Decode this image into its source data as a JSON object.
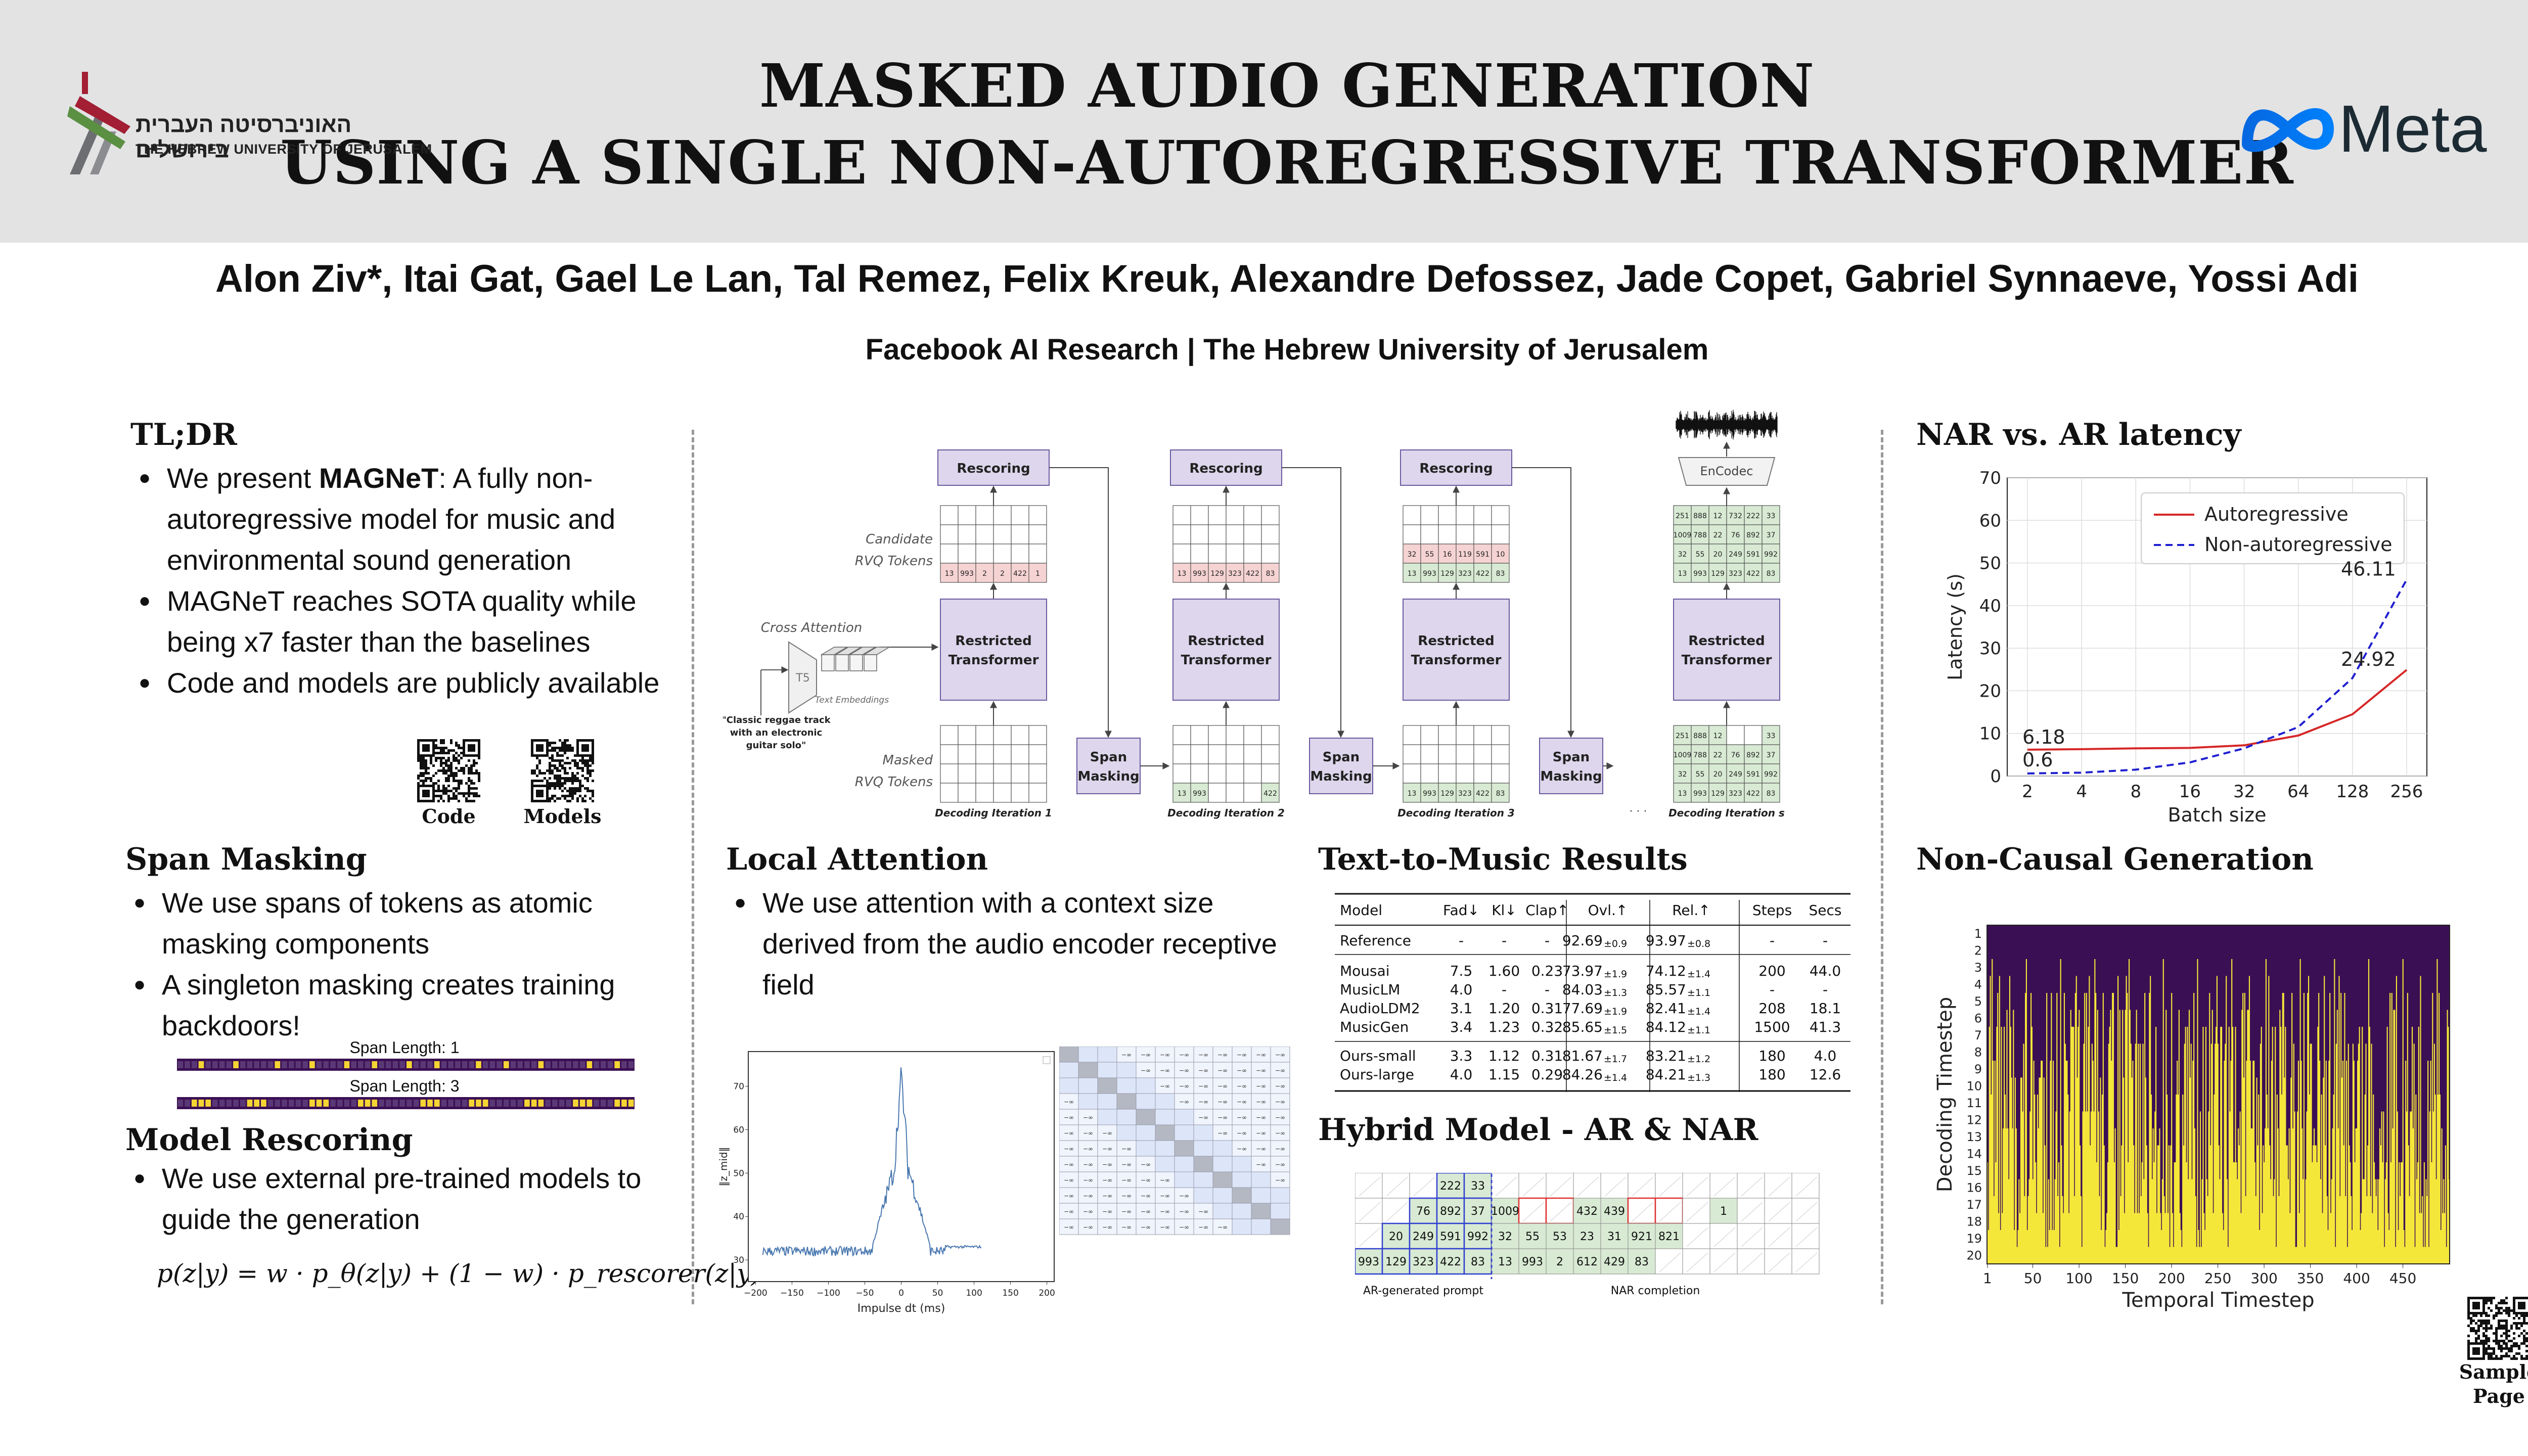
{
  "header": {
    "title_line1": "MASKED AUDIO GENERATION",
    "title_line2": "USING A SINGLE NON-AUTOREGRESSIVE TRANSFORMER",
    "huji_hebrew": "האוניברסיטה העברית בירושלים",
    "huji_english": "THE HEBREW UNIVERSITY OF JERUSALEM",
    "meta_logo": "Meta",
    "colors": {
      "background": "#e3e3e4",
      "meta_blue": "#1877f2"
    }
  },
  "authors": "Alon Ziv*, Itai Gat, Gael Le Lan, Tal Remez, Felix Kreuk, Alexandre Defossez, Jade Copet, Gabriel Synnaeve, Yossi Adi",
  "affiliation": "Facebook AI Research | The Hebrew University of Jerusalem",
  "tldr": {
    "heading": "TL;DR",
    "b1_pre": "We present ",
    "b1_bold": "MAGNeT",
    "b1_post": ": A fully non-autoregressive model for music and environmental sound generation",
    "b2": "MAGNeT reaches SOTA quality while being x7 faster than the baselines",
    "b3": "Code and models are publicly available",
    "qr_code": "Code",
    "qr_models": "Models"
  },
  "span_masking": {
    "heading": "Span Masking",
    "b1": "We use spans of tokens as atomic masking components",
    "b2": "A singleton masking creates training backdoors!",
    "label1": "Span Length: 1",
    "label3": "Span Length: 3",
    "mask1": [
      0,
      0,
      0,
      1,
      0,
      0,
      0,
      0,
      1,
      0,
      0,
      0,
      0,
      0,
      1,
      0,
      0,
      0,
      0,
      1,
      0,
      0,
      0,
      0,
      1,
      0,
      0,
      0,
      1,
      0,
      0,
      0,
      0,
      1,
      0,
      0,
      0,
      1,
      0,
      0,
      0,
      0,
      0,
      1,
      0,
      0,
      0,
      1,
      0,
      0,
      0,
      0,
      1,
      0,
      0,
      0,
      0,
      0,
      0,
      1,
      0,
      0,
      0,
      1,
      0,
      0
    ],
    "mask3": [
      0,
      0,
      1,
      1,
      1,
      0,
      0,
      0,
      0,
      0,
      1,
      1,
      1,
      0,
      0,
      0,
      0,
      0,
      0,
      1,
      1,
      1,
      0,
      0,
      0,
      0,
      1,
      1,
      1,
      0,
      0,
      0,
      0,
      0,
      0,
      1,
      1,
      1,
      0,
      0,
      0,
      0,
      1,
      1,
      1,
      0,
      0,
      0,
      0,
      0,
      1,
      1,
      1,
      0,
      0,
      0,
      0,
      1,
      1,
      1,
      0,
      0,
      0,
      1,
      1,
      1
    ],
    "colors": {
      "off": "#3b0f54",
      "on": "#f5d533"
    }
  },
  "model_rescoring": {
    "heading": "Model Rescoring",
    "b1": "We use external pre-trained models to guide the generation",
    "formula": "p(z|y) = w · p_θ(z|y) + (1 − w) · p_rescorer(z|y)"
  },
  "architecture": {
    "rescoring": "Rescoring",
    "restricted": "Restricted",
    "transformer": "Transformer",
    "span": "Span",
    "masking": "Masking",
    "encodec": "EnCodec",
    "t5": "T5",
    "candidate1": "Candidate",
    "candidate2": "RVQ Tokens",
    "masked1": "Masked",
    "masked2": "RVQ Tokens",
    "cross_attention": "Cross Attention",
    "text_embeddings": "Text Embeddings",
    "prompt1": "\"Classic reggae track",
    "prompt2": "with an electronic",
    "prompt3": "guitar solo\"",
    "dots": "· · ·",
    "iter_labels": [
      "Decoding Iteration 1",
      "Decoding Iteration 2",
      "Decoding Iteration 3",
      "Decoding Iteration s"
    ],
    "cand1": [
      "13",
      "993",
      "2",
      "2",
      "422",
      "1"
    ],
    "cand2": [
      "13",
      "993",
      "129",
      "323",
      "422",
      "83"
    ],
    "cand3a": [
      "32",
      "55",
      "16",
      "119",
      "591",
      "10"
    ],
    "cand3b": [
      "13",
      "993",
      "129",
      "323",
      "422",
      "83"
    ],
    "in2": [
      "13",
      "993",
      "",
      "",
      "",
      "422"
    ],
    "in3": [
      "13",
      "993",
      "129",
      "323",
      "422",
      "83"
    ],
    "final_rows": [
      [
        "251",
        "888",
        "12",
        "732",
        "222",
        "33"
      ],
      [
        "1009",
        "788",
        "22",
        "76",
        "892",
        "37"
      ],
      [
        "32",
        "55",
        "20",
        "249",
        "591",
        "992"
      ],
      [
        "13",
        "993",
        "129",
        "323",
        "422",
        "83"
      ]
    ],
    "in_s_rows": [
      [
        "251",
        "888",
        "12",
        "",
        "",
        "33"
      ],
      [
        "1009",
        "788",
        "22",
        "76",
        "892",
        "37"
      ],
      [
        "32",
        "55",
        "20",
        "249",
        "591",
        "992"
      ],
      [
        "13",
        "993",
        "129",
        "323",
        "422",
        "83"
      ]
    ]
  },
  "local_attention": {
    "heading": "Local Attention",
    "b1": "We use attention with a context size derived from the audio encoder receptive field",
    "plot_xlabel": "Impulse dt (ms)",
    "plot_ylabel": "‖z_mid‖",
    "plot_xticks": [
      "−200",
      "−150",
      "−100",
      "−50",
      "0",
      "50",
      "100",
      "150",
      "200"
    ],
    "plot_yticks": [
      "30",
      "40",
      "50",
      "60",
      "70"
    ],
    "inf": "−∞"
  },
  "t2m": {
    "heading": "Text-to-Music Results",
    "headers": [
      "Model",
      "Fad↓",
      "Kl↓",
      "Clap↑",
      "Ovl.↑",
      "Rel.↑",
      "Steps",
      "Secs"
    ],
    "reference": {
      "model": "Reference",
      "fad": "-",
      "kl": "-",
      "clap": "-",
      "ovl": "92.69",
      "ovl_pm": "±0.9",
      "rel": "93.97",
      "rel_pm": "±0.8",
      "steps": "-",
      "secs": "-"
    },
    "baselines": [
      {
        "model": "Mousai",
        "fad": "7.5",
        "kl": "1.60",
        "clap": "0.23",
        "ovl": "73.97",
        "ovl_pm": "±1.9",
        "rel": "74.12",
        "rel_pm": "±1.4",
        "steps": "200",
        "secs": "44.0"
      },
      {
        "model": "MusicLM",
        "fad": "4.0",
        "kl": "-",
        "clap": "-",
        "ovl": "84.03",
        "ovl_pm": "±1.3",
        "rel": "85.57",
        "rel_pm": "±1.1",
        "steps": "-",
        "secs": "-"
      },
      {
        "model": "AudioLDM2",
        "fad": "3.1",
        "kl": "1.20",
        "clap": "0.31",
        "ovl": "77.69",
        "ovl_pm": "±1.9",
        "rel": "82.41",
        "rel_pm": "±1.4",
        "steps": "208",
        "secs": "18.1"
      },
      {
        "model": "MusicGen",
        "fad": "3.4",
        "kl": "1.23",
        "clap": "0.32",
        "ovl": "85.65",
        "ovl_pm": "±1.5",
        "rel": "84.12",
        "rel_pm": "±1.1",
        "steps": "1500",
        "secs": "41.3"
      }
    ],
    "ours": [
      {
        "model": "Ours-small",
        "fad": "3.3",
        "kl": "1.12",
        "clap": "0.31",
        "ovl": "81.67",
        "ovl_pm": "±1.7",
        "rel": "83.21",
        "rel_pm": "±1.2",
        "steps": "180",
        "secs": "4.0"
      },
      {
        "model": "Ours-large",
        "fad": "4.0",
        "kl": "1.15",
        "clap": "0.29",
        "ovl": "84.26",
        "ovl_pm": "±1.4",
        "rel": "84.21",
        "rel_pm": "±1.3",
        "steps": "180",
        "secs": "12.6"
      }
    ]
  },
  "hybrid": {
    "heading": "Hybrid Model - AR & NAR",
    "ar_label": "AR-generated prompt",
    "nar_label": "NAR completion",
    "rows": [
      [
        "",
        "",
        "",
        "222",
        "33",
        "",
        "",
        "",
        "",
        "",
        "",
        "",
        "",
        "",
        "",
        "",
        ""
      ],
      [
        "",
        "",
        "76",
        "892",
        "37",
        "1009",
        "",
        "",
        "432",
        "439",
        "",
        "",
        "",
        "1",
        "",
        "",
        ""
      ],
      [
        "",
        "20",
        "249",
        "591",
        "992",
        "32",
        "55",
        "53",
        "23",
        "31",
        "921",
        "821",
        "",
        "",
        "",
        "",
        ""
      ],
      [
        "993",
        "129",
        "323",
        "422",
        "83",
        "13",
        "993",
        "2",
        "612",
        "429",
        "83",
        "",
        "",
        "",
        "",
        "",
        ""
      ]
    ]
  },
  "latency": {
    "heading": "NAR vs. AR latency",
    "chart_data": {
      "type": "line",
      "x": [
        2,
        4,
        8,
        16,
        32,
        64,
        128,
        256
      ],
      "series": [
        {
          "name": "Autoregressive",
          "values": [
            6.18,
            6.3,
            6.5,
            6.6,
            7.2,
            9.5,
            14.5,
            24.92
          ],
          "color": "#d62728"
        },
        {
          "name": "Non-autoregressive",
          "values": [
            0.6,
            0.8,
            1.5,
            3.2,
            6.5,
            11.5,
            23,
            46.11
          ],
          "color": "#1f1fd0"
        }
      ],
      "xlabel": "Batch size",
      "ylabel": "Latency (s)",
      "ylim": [
        0,
        70
      ],
      "yticks": [
        "0",
        "10",
        "20",
        "30",
        "40",
        "50",
        "60",
        "70"
      ],
      "xticks": [
        "2",
        "4",
        "8",
        "16",
        "32",
        "64",
        "128",
        "256"
      ],
      "log_x": true,
      "grid": true,
      "legend": "top-right",
      "annotations": [
        "6.18",
        "0.6",
        "24.92",
        "46.11"
      ]
    }
  },
  "noncausal": {
    "heading": "Non-Causal Generation",
    "chart_data": {
      "type": "heatmap",
      "xlabel": "Temporal Timestep",
      "ylabel": "Decoding Timestep",
      "xticks": [
        "1",
        "50",
        "100",
        "150",
        "200",
        "250",
        "300",
        "350",
        "400",
        "450"
      ],
      "yticks": [
        "1",
        "2",
        "3",
        "4",
        "5",
        "6",
        "7",
        "8",
        "9",
        "10",
        "11",
        "12",
        "13",
        "14",
        "15",
        "16",
        "17",
        "18",
        "19",
        "20"
      ],
      "columns": 500,
      "rows": 20,
      "colors": {
        "masked": "#3b0f54",
        "decoded": "#f5e63a"
      }
    }
  },
  "sample_page": {
    "line1": "Sample",
    "line2": "Page"
  }
}
